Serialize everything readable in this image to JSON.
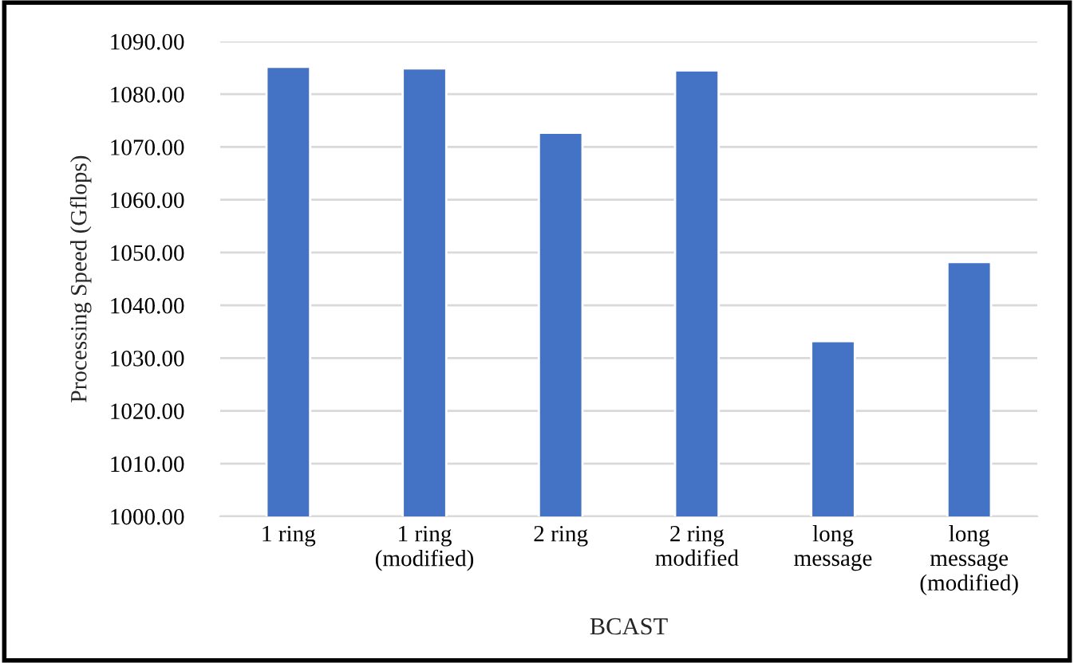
{
  "chart_data": {
    "type": "bar",
    "xlabel": "BCAST",
    "ylabel": "Processing Speed (Gflops)",
    "categories": [
      "1 ring",
      "1 ring\n(modified)",
      "2 ring",
      "2 ring\nmodified",
      "long\nmessage",
      "long\nmessage\n(modified)"
    ],
    "values": [
      1085.2,
      1084.9,
      1072.7,
      1084.5,
      1033.2,
      1048.2
    ],
    "color": "#4472c4",
    "ylim": [
      1000,
      1090
    ],
    "yticks": [
      {
        "value": 1000,
        "label": "1000.00"
      },
      {
        "value": 1010,
        "label": "1010.00"
      },
      {
        "value": 1020,
        "label": "1020.00"
      },
      {
        "value": 1030,
        "label": "1030.00"
      },
      {
        "value": 1040,
        "label": "1040.00"
      },
      {
        "value": 1050,
        "label": "1050.00"
      },
      {
        "value": 1060,
        "label": "1060.00"
      },
      {
        "value": 1070,
        "label": "1070.00"
      },
      {
        "value": 1080,
        "label": "1080.00"
      },
      {
        "value": 1090,
        "label": "1090.00"
      }
    ],
    "grid": "y"
  }
}
